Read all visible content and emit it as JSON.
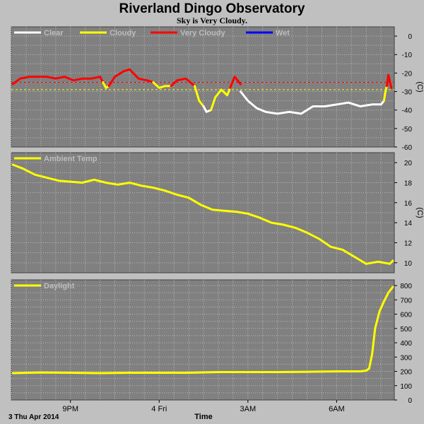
{
  "header": {
    "title": "Riverland Dingo Observatory",
    "subtitle": "Sky is Very Cloudy."
  },
  "footer": {
    "date_label": "3 Thu Apr 2014",
    "x_axis_label": "Time"
  },
  "x_axis": {
    "range_hours": [
      19.0,
      31.95
    ],
    "ticks": [
      {
        "hour": 21,
        "label": "9PM"
      },
      {
        "hour": 24,
        "label": "4 Fri"
      },
      {
        "hour": 27,
        "label": "3AM"
      },
      {
        "hour": 30,
        "label": "6AM"
      }
    ]
  },
  "colors": {
    "plot_background": "#808080",
    "frame_background": "#c0c0c0",
    "clear": "#ffffff",
    "cloudy": "#ffff00",
    "very_cloudy": "#ff0000",
    "wet": "#0000ff",
    "legend_text": "#bdbdbd"
  },
  "chart_data": [
    {
      "type": "line",
      "name": "sky",
      "ylim": [
        -60,
        5
      ],
      "y_ticks": [
        0,
        -10,
        -20,
        -30,
        -40,
        -50,
        -60
      ],
      "unit": "(C)",
      "legend": [
        {
          "label": "Clear",
          "color": "#ffffff"
        },
        {
          "label": "Cloudy",
          "color": "#ffff00"
        },
        {
          "label": "Very Cloudy",
          "color": "#ff0000"
        },
        {
          "label": "Wet",
          "color": "#0000ff"
        }
      ],
      "threshold_lines": [
        {
          "value": -25,
          "color": "#ff0000",
          "style": "dotted"
        },
        {
          "value": -29,
          "color": "#ffff00",
          "style": "dotted"
        }
      ],
      "series_segments": [
        {
          "category": "Very Cloudy",
          "color": "#ff0000",
          "x": [
            19.05,
            19.3,
            19.6,
            19.9,
            20.2,
            20.5,
            20.8,
            21.1,
            21.4,
            21.7,
            22.0,
            22.1
          ],
          "y": [
            -26,
            -23,
            -22,
            -22,
            -22,
            -23,
            -22,
            -24,
            -23,
            -23,
            -22,
            -25
          ]
        },
        {
          "category": "Cloudy",
          "color": "#ffff00",
          "x": [
            22.1,
            22.2,
            22.3
          ],
          "y": [
            -25,
            -28,
            -27
          ]
        },
        {
          "category": "Very Cloudy",
          "color": "#ff0000",
          "x": [
            22.3,
            22.5,
            22.8,
            23.0,
            23.3,
            23.6,
            23.8
          ],
          "y": [
            -27,
            -22,
            -19,
            -18,
            -23,
            -24,
            -25
          ]
        },
        {
          "category": "Cloudy",
          "color": "#ffff00",
          "x": [
            23.8,
            24.0,
            24.2,
            24.4
          ],
          "y": [
            -25,
            -28,
            -27,
            -27
          ]
        },
        {
          "category": "Very Cloudy",
          "color": "#ff0000",
          "x": [
            24.4,
            24.6,
            24.9,
            25.2
          ],
          "y": [
            -27,
            -24,
            -23,
            -27
          ]
        },
        {
          "category": "Cloudy",
          "color": "#ffff00",
          "x": [
            25.2,
            25.35,
            25.5
          ],
          "y": [
            -27,
            -35,
            -38
          ]
        },
        {
          "category": "Clear",
          "color": "#ffffff",
          "x": [
            25.5,
            25.6,
            25.75
          ],
          "y": [
            -38,
            -41,
            -40
          ]
        },
        {
          "category": "Cloudy",
          "color": "#ffff00",
          "x": [
            25.75,
            25.9,
            26.1,
            26.3,
            26.4
          ],
          "y": [
            -40,
            -33,
            -29,
            -32,
            -28
          ]
        },
        {
          "category": "Very Cloudy",
          "color": "#ff0000",
          "x": [
            26.4,
            26.55,
            26.75
          ],
          "y": [
            -28,
            -22,
            -26
          ]
        },
        {
          "category": "Clear",
          "color": "#ffffff",
          "x": [
            26.75,
            27.0,
            27.3,
            27.6,
            28.0,
            28.4,
            28.8,
            29.2,
            29.6,
            30.0,
            30.4,
            30.8,
            31.2,
            31.5,
            31.6
          ],
          "y": [
            -30,
            -35,
            -39,
            -41,
            -42,
            -41,
            -42,
            -38,
            -38,
            -37,
            -36,
            -38,
            -37,
            -37,
            -35
          ]
        },
        {
          "category": "Cloudy",
          "color": "#ffff00",
          "x": [
            31.6,
            31.65,
            31.7
          ],
          "y": [
            -35,
            -30,
            -27
          ]
        },
        {
          "category": "Very Cloudy",
          "color": "#ff0000",
          "x": [
            31.7,
            31.75,
            31.85
          ],
          "y": [
            -27,
            -21,
            -28
          ]
        }
      ]
    },
    {
      "type": "line",
      "name": "ambient",
      "ylim": [
        9,
        21
      ],
      "y_ticks": [
        20,
        18,
        16,
        14,
        12,
        10
      ],
      "unit": "(C)",
      "legend": [
        {
          "label": "Ambient Temp",
          "color": "#ffff00"
        }
      ],
      "series": [
        {
          "name": "Ambient Temp",
          "color": "#ffff00",
          "x": [
            19.05,
            19.4,
            19.8,
            20.2,
            20.6,
            21.0,
            21.4,
            21.8,
            22.2,
            22.6,
            23.0,
            23.4,
            23.8,
            24.2,
            24.6,
            25.0,
            25.4,
            25.8,
            26.2,
            26.6,
            27.0,
            27.4,
            27.8,
            28.2,
            28.6,
            29.0,
            29.4,
            29.8,
            30.2,
            30.6,
            31.0,
            31.4,
            31.8,
            31.9
          ],
          "y": [
            19.8,
            19.4,
            18.8,
            18.5,
            18.2,
            18.1,
            18.0,
            18.3,
            18.0,
            17.8,
            18.0,
            17.7,
            17.5,
            17.2,
            16.8,
            16.5,
            15.8,
            15.3,
            15.2,
            15.1,
            14.9,
            14.5,
            14.0,
            13.8,
            13.5,
            13.0,
            12.4,
            11.6,
            11.3,
            10.6,
            9.9,
            10.1,
            9.9,
            10.2
          ]
        }
      ]
    },
    {
      "type": "line",
      "name": "daylight",
      "ylim": [
        0,
        840
      ],
      "y_ticks": [
        800,
        700,
        600,
        500,
        400,
        300,
        200,
        100,
        0
      ],
      "legend": [
        {
          "label": "Daylight",
          "color": "#ffff00"
        }
      ],
      "series": [
        {
          "name": "Daylight",
          "color": "#ffff00",
          "x": [
            19.05,
            20.0,
            21.0,
            22.0,
            23.0,
            24.0,
            25.0,
            26.0,
            27.0,
            28.0,
            29.0,
            30.0,
            30.8,
            31.0,
            31.1,
            31.2,
            31.3,
            31.45,
            31.6,
            31.75,
            31.9
          ],
          "y": [
            188,
            192,
            190,
            188,
            190,
            190,
            190,
            195,
            195,
            195,
            197,
            200,
            200,
            205,
            220,
            320,
            500,
            620,
            690,
            750,
            790
          ]
        }
      ]
    }
  ]
}
